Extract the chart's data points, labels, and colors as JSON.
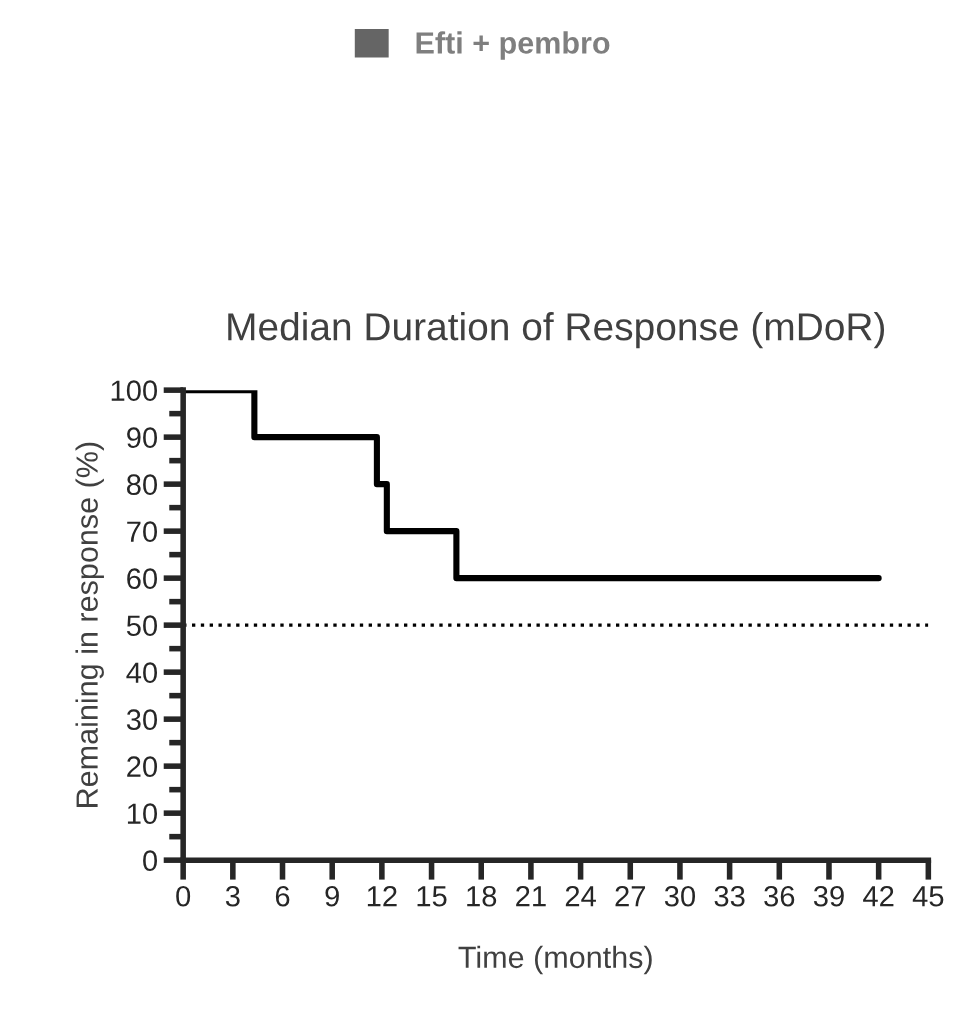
{
  "chart_data": {
    "type": "step",
    "title": "Median Duration of Response (mDoR)",
    "xlabel": "Time (months)",
    "ylabel": "Remaining in response (%)",
    "x": [
      0,
      4.3,
      11.7,
      12.3,
      16.5,
      42
    ],
    "series": [
      {
        "name": "Efti + pembro",
        "color": "#000000",
        "values": [
          100,
          90,
          80,
          70,
          60,
          60
        ]
      }
    ],
    "xlim": [
      0,
      45
    ],
    "xticks": [
      0,
      3,
      6,
      9,
      12,
      15,
      18,
      21,
      24,
      27,
      30,
      33,
      36,
      39,
      42,
      45
    ],
    "ylim": [
      0,
      100
    ],
    "yticks": [
      0,
      10,
      20,
      30,
      40,
      50,
      60,
      70,
      80,
      90,
      100
    ],
    "ref_lines": [
      {
        "axis": "y",
        "value": 50,
        "label": null,
        "line_style": "dotted",
        "color": "#000000"
      }
    ],
    "grid": false,
    "legend": "top",
    "marker": "none",
    "line_style": "solid"
  }
}
